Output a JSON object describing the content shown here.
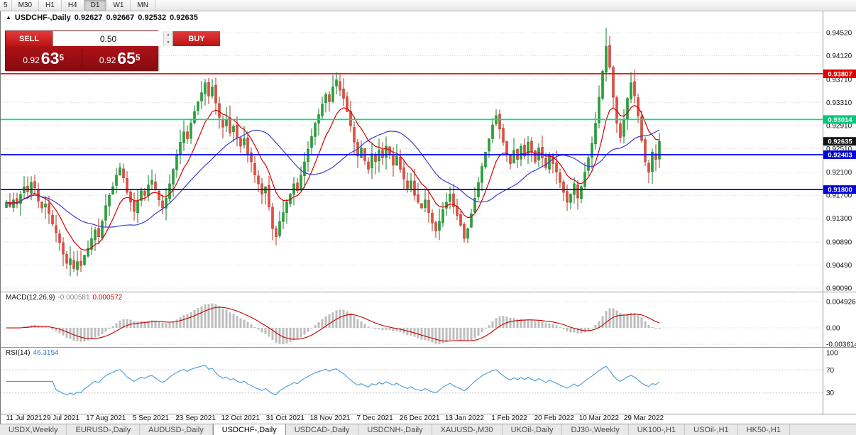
{
  "toolbar": {
    "timeframes": [
      "5",
      "M30",
      "H1",
      "H4",
      "D1",
      "W1",
      "MN"
    ],
    "active": "D1"
  },
  "header": {
    "symbol": "USDCHF-,Daily",
    "open": "0.92627",
    "high": "0.92667",
    "low": "0.92532",
    "close": "0.92635"
  },
  "trade": {
    "sell": "SELL",
    "buy": "BUY",
    "volume": "0.50",
    "bid": {
      "prefix": "0.92",
      "big": "63",
      "sup": "5"
    },
    "ask": {
      "prefix": "0.92",
      "big": "65",
      "sup": "5"
    }
  },
  "price_axis": {
    "ticks": [
      "0.94520",
      "0.94120",
      "0.93710",
      "0.93310",
      "0.92910",
      "0.92510",
      "0.92100",
      "0.91700",
      "0.91300",
      "0.90890",
      "0.90490",
      "0.90090"
    ]
  },
  "levels": [
    {
      "value": 0.93807,
      "label": "0.93807",
      "line": "#f21414",
      "tag": "#e00000"
    },
    {
      "value": 0.93014,
      "label": "0.93014",
      "line": "#00e08a",
      "tag": "#00c87d"
    },
    {
      "value": 0.92403,
      "label": "0.92403",
      "line": "#0000f0",
      "tag": "#0000d8"
    },
    {
      "value": 0.918,
      "label": "0.91800",
      "line": "#0000f0",
      "tag": "#0000d8"
    }
  ],
  "current_price": {
    "value": 0.92635,
    "label": "0.92635",
    "tag": "#151515"
  },
  "macd": {
    "name": "MACD(12,26,9)",
    "main_value": "-0.000581",
    "signal_value": "0.000572",
    "axis": [
      {
        "label": "0.004926",
        "y": 13
      },
      {
        "label": "0.00",
        "y": 50
      },
      {
        "label": "-0.003614",
        "y": 73
      }
    ]
  },
  "rsi": {
    "name": "RSI(14)",
    "value": "46.3154",
    "axis": [
      {
        "label": "100",
        "v": 100
      },
      {
        "label": "70",
        "v": 70
      },
      {
        "label": "30",
        "v": 30
      }
    ],
    "levels": [
      70,
      30
    ]
  },
  "tabs": {
    "items": [
      "USDX,Weekly",
      "EURUSD-,Daily",
      "AUDUSD-,Daily",
      "USDCHF-,Daily",
      "USDCAD-,Daily",
      "USDCNH-,Daily",
      "XAUUSD-,M30",
      "UKOil-,Daily",
      "DJ30-,Weekly",
      "UK100-,H1",
      "USOil-,H1",
      "HK50-,H1"
    ],
    "active": "USDCHF-,Daily"
  },
  "chart_data": {
    "type": "candlestick",
    "symbol": "USDCHF-",
    "timeframe": "Daily",
    "ylim": [
      0.9009,
      0.9452
    ],
    "date_ticks": [
      "11 Jul 2021",
      "29 Jul 2021",
      "17 Aug 2021",
      "5 Sep 2021",
      "23 Sep 2021",
      "12 Oct 2021",
      "31 Oct 2021",
      "18 Nov 2021",
      "7 Dec 2021",
      "26 Dec 2021",
      "13 Jan 2022",
      "1 Feb 2022",
      "20 Feb 2022",
      "10 Mar 2022",
      "29 Mar 2022"
    ],
    "ohlc_last": {
      "open": 0.92627,
      "high": 0.92667,
      "low": 0.92532,
      "close": 0.92635
    },
    "closes": [
      0.9158,
      0.915,
      0.9162,
      0.9155,
      0.9172,
      0.9185,
      0.9176,
      0.9192,
      0.9183,
      0.916,
      0.9148,
      0.9155,
      0.9138,
      0.912,
      0.9105,
      0.9088,
      0.9068,
      0.9052,
      0.906,
      0.9043,
      0.9055,
      0.9048,
      0.9066,
      0.9078,
      0.9095,
      0.911,
      0.9098,
      0.9125,
      0.9152,
      0.917,
      0.9185,
      0.9205,
      0.9218,
      0.92,
      0.9175,
      0.9158,
      0.9142,
      0.916,
      0.9178,
      0.917,
      0.9188,
      0.9196,
      0.918,
      0.9162,
      0.9148,
      0.9165,
      0.919,
      0.9215,
      0.924,
      0.9262,
      0.928,
      0.9268,
      0.9295,
      0.9315,
      0.9332,
      0.9348,
      0.9365,
      0.9342,
      0.9358,
      0.933,
      0.9305,
      0.9288,
      0.9302,
      0.9278,
      0.929,
      0.927,
      0.9255,
      0.9268,
      0.9242,
      0.9228,
      0.9205,
      0.919,
      0.9172,
      0.9185,
      0.915,
      0.9112,
      0.9098,
      0.9125,
      0.914,
      0.9158,
      0.9172,
      0.919,
      0.9178,
      0.9205,
      0.9228,
      0.925,
      0.9272,
      0.9295,
      0.931,
      0.9328,
      0.9345,
      0.9332,
      0.9358,
      0.937,
      0.9352,
      0.9338,
      0.9315,
      0.929,
      0.9262,
      0.9238,
      0.9252,
      0.923,
      0.9215,
      0.9242,
      0.9228,
      0.9248,
      0.9235,
      0.9255,
      0.924,
      0.9222,
      0.9238,
      0.9215,
      0.9198,
      0.9182,
      0.9195,
      0.917,
      0.9158,
      0.9148,
      0.9162,
      0.914,
      0.9122,
      0.9108,
      0.9125,
      0.9145,
      0.9158,
      0.9172,
      0.915,
      0.9135,
      0.9118,
      0.9095,
      0.9112,
      0.9138,
      0.9165,
      0.9192,
      0.922,
      0.9245,
      0.9268,
      0.9292,
      0.9308,
      0.9285,
      0.9262,
      0.924,
      0.9225,
      0.9248,
      0.9232,
      0.9255,
      0.9238,
      0.9262,
      0.9245,
      0.9228,
      0.9252,
      0.9235,
      0.9218,
      0.924,
      0.9225,
      0.921,
      0.9192,
      0.9175,
      0.9158,
      0.9172,
      0.919,
      0.9165,
      0.9185,
      0.921,
      0.9235,
      0.926,
      0.9295,
      0.934,
      0.9385,
      0.9428,
      0.9392,
      0.934,
      0.9295,
      0.927,
      0.9302,
      0.9338,
      0.9365,
      0.9342,
      0.9308,
      0.9265,
      0.9228,
      0.921,
      0.9245,
      0.9232,
      0.92635
    ],
    "wick_overrides": [
      {
        "i": 19,
        "l": 0.9037
      },
      {
        "i": 169,
        "h": 0.946
      }
    ]
  },
  "colors": {
    "up": "#27a437",
    "up_dark": "#117a24",
    "down": "#e14f3f",
    "down_dark": "#b03225",
    "ma_fast": "#d40000",
    "ma_slow": "#3c3cd0",
    "macd_hist": "#bdbdbd",
    "macd_signal": "#c40000",
    "rsi_line": "#4a9ad2",
    "grid": "#d8d8d8"
  }
}
